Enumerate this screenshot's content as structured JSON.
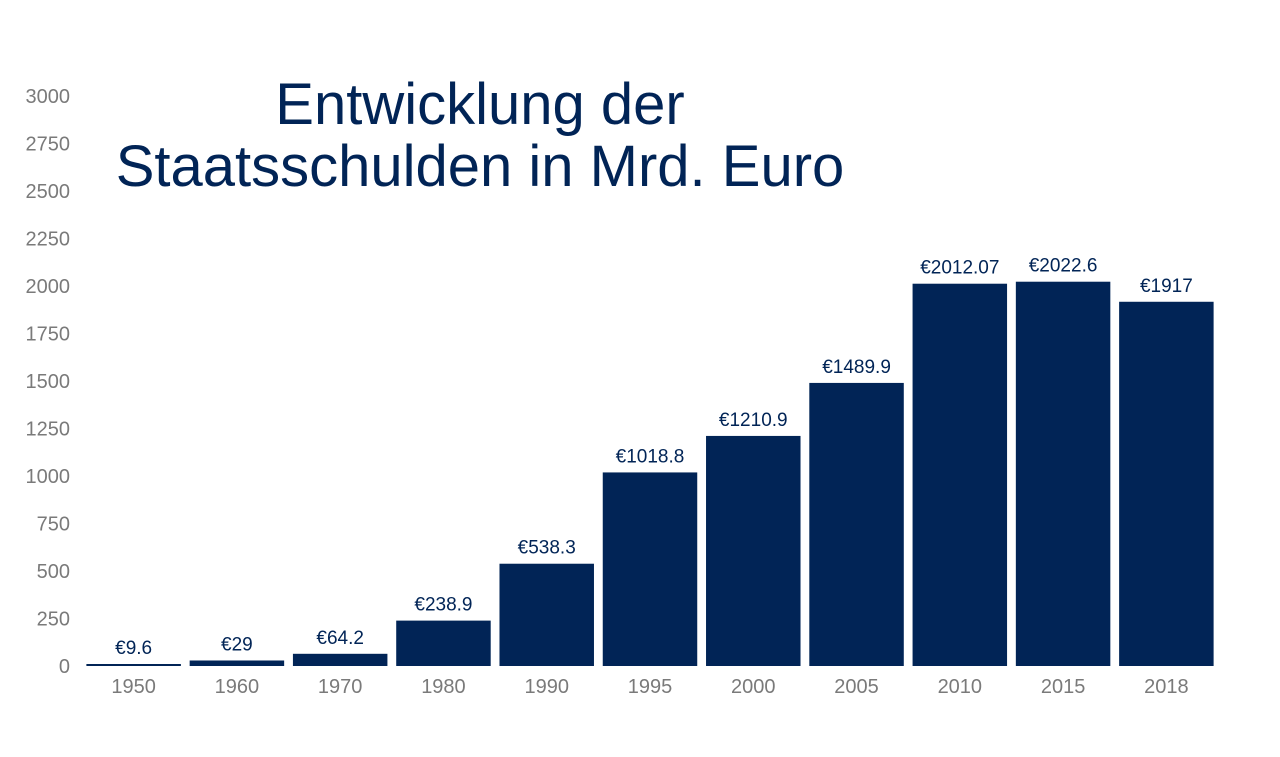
{
  "chart_data": {
    "type": "bar",
    "title_lines": [
      "Entwicklung der",
      "Staatsschulden in Mrd. Euro"
    ],
    "xlabel": "",
    "ylabel": "",
    "categories": [
      "1950",
      "1960",
      "1970",
      "1980",
      "1990",
      "1995",
      "2000",
      "2005",
      "2010",
      "2015",
      "2018"
    ],
    "values": [
      9.6,
      29,
      64.2,
      238.9,
      538.3,
      1018.8,
      1210.9,
      1489.9,
      2012.07,
      2022.6,
      1917
    ],
    "data_labels": [
      "€9.6",
      "€29",
      "€64.2",
      "€238.9",
      "€538.3",
      "€1018.8",
      "€1210.9",
      "€1489.9",
      "€2012.07",
      "€2022.6",
      "€1917"
    ],
    "yticks": [
      0,
      250,
      500,
      750,
      1000,
      1250,
      1500,
      1750,
      2000,
      2250,
      2500,
      2750,
      3000
    ],
    "ylim": [
      0,
      3000
    ],
    "grid": false,
    "legend": "none",
    "colors": {
      "bar": "#012456",
      "title": "#012456",
      "data_label": "#012456",
      "tick": "#7a7a7a"
    }
  }
}
